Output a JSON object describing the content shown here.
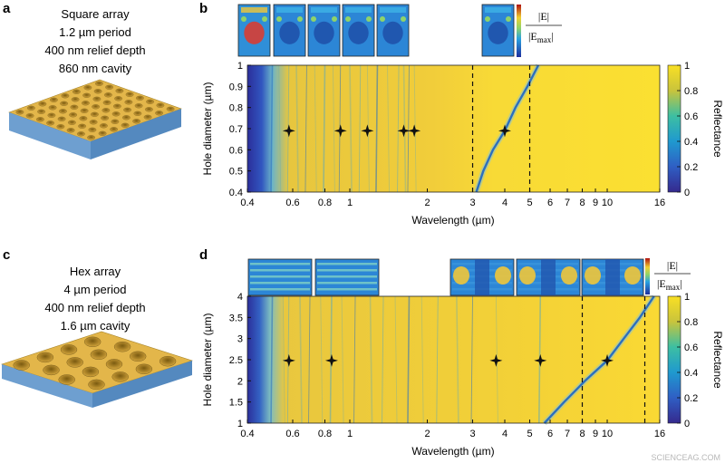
{
  "panels": {
    "a": {
      "letter": "a",
      "lines": [
        "Square array",
        "1.2 µm period",
        "400 nm relief depth",
        "860 nm cavity"
      ]
    },
    "b": {
      "letter": "b"
    },
    "c": {
      "letter": "c",
      "lines": [
        "Hex array",
        "4 µm period",
        "400 nm relief depth",
        "1.6 µm cavity"
      ]
    },
    "d": {
      "letter": "d"
    }
  },
  "field_legend": {
    "numerator": "|E|",
    "denominator_main": "|E",
    "denominator_sub": "max",
    "denominator_end": "|"
  },
  "watermark": "SCIENCEAG.COM",
  "colors": {
    "background_yellow": "#f7d63a",
    "mode_blue": "#2a6fc0",
    "dark_blue": "#2c2f9c",
    "slab_blue": "#6e9fd0",
    "gold": "#e3b64a"
  },
  "chart_data": [
    {
      "type": "heatmap",
      "panel": "b",
      "xlabel": "Wavelength (µm)",
      "ylabel": "Hole diameter (µm)",
      "colorbar_label": "Reflectance",
      "x_scale": "log",
      "xlim": [
        0.4,
        16
      ],
      "ylim": [
        0.4,
        1
      ],
      "x_ticks": [
        0.4,
        0.6,
        0.8,
        1,
        2,
        3,
        4,
        5,
        6,
        7,
        8,
        9,
        10,
        16
      ],
      "x_tick_labels": [
        "0.4",
        "0.6",
        "0.8",
        "1",
        "2",
        "3",
        "4",
        "5",
        "6",
        "7",
        "8",
        "9",
        "10",
        "16"
      ],
      "y_ticks": [
        0.4,
        0.5,
        0.6,
        0.7,
        0.8,
        0.9,
        1
      ],
      "y_tick_labels": [
        "0.4",
        "0.5",
        "0.6",
        "0.7",
        "0.8",
        "0.9",
        "1"
      ],
      "colorbar_ticks": [
        0,
        0.2,
        0.4,
        0.6,
        0.8,
        1
      ],
      "colorbar_tick_labels": [
        "0",
        "0.2",
        "0.4",
        "0.6",
        "0.8",
        "1"
      ],
      "dashed_lines_x": [
        3,
        5
      ],
      "markers": [
        {
          "x": 0.58,
          "y": 0.69
        },
        {
          "x": 0.92,
          "y": 0.69
        },
        {
          "x": 1.17,
          "y": 0.69
        },
        {
          "x": 1.62,
          "y": 0.69
        },
        {
          "x": 1.78,
          "y": 0.69
        },
        {
          "x": 4.0,
          "y": 0.69
        }
      ],
      "resonance_curves": [
        [
          [
            3.1,
            0.4
          ],
          [
            3.3,
            0.5
          ],
          [
            3.6,
            0.6
          ],
          [
            4.0,
            0.69
          ],
          [
            4.4,
            0.8
          ],
          [
            4.9,
            0.9
          ],
          [
            5.4,
            1.0
          ]
        ]
      ],
      "field_insets_count": 6
    },
    {
      "type": "heatmap",
      "panel": "d",
      "xlabel": "Wavelength (µm)",
      "ylabel": "Hole diameter (µm)",
      "colorbar_label": "Reflectance",
      "x_scale": "log",
      "xlim": [
        0.4,
        16
      ],
      "ylim": [
        1,
        4
      ],
      "x_ticks": [
        0.4,
        0.6,
        0.8,
        1,
        2,
        3,
        4,
        5,
        6,
        7,
        8,
        9,
        10,
        16
      ],
      "x_tick_labels": [
        "0.4",
        "0.6",
        "0.8",
        "1",
        "2",
        "3",
        "4",
        "5",
        "6",
        "7",
        "8",
        "9",
        "10",
        "16"
      ],
      "y_ticks": [
        1,
        1.5,
        2,
        2.5,
        3,
        3.5,
        4
      ],
      "y_tick_labels": [
        "1",
        "1.5",
        "2",
        "2.5",
        "3",
        "3.5",
        "4"
      ],
      "colorbar_ticks": [
        0,
        0.2,
        0.4,
        0.6,
        0.8,
        1
      ],
      "colorbar_tick_labels": [
        "0",
        "0.2",
        "0.4",
        "0.6",
        "0.8",
        "1"
      ],
      "dashed_lines_x": [
        8,
        14
      ],
      "markers": [
        {
          "x": 0.58,
          "y": 2.48
        },
        {
          "x": 0.85,
          "y": 2.48
        },
        {
          "x": 3.7,
          "y": 2.48
        },
        {
          "x": 5.5,
          "y": 2.48
        },
        {
          "x": 10.0,
          "y": 2.48
        }
      ],
      "resonance_curves": [
        [
          [
            5.7,
            1.0
          ],
          [
            6.8,
            1.5
          ],
          [
            8.2,
            2.0
          ],
          [
            10.0,
            2.48
          ],
          [
            11.6,
            3.0
          ],
          [
            13.4,
            3.5
          ],
          [
            15.2,
            4.0
          ]
        ]
      ],
      "field_insets_count": 5
    }
  ]
}
